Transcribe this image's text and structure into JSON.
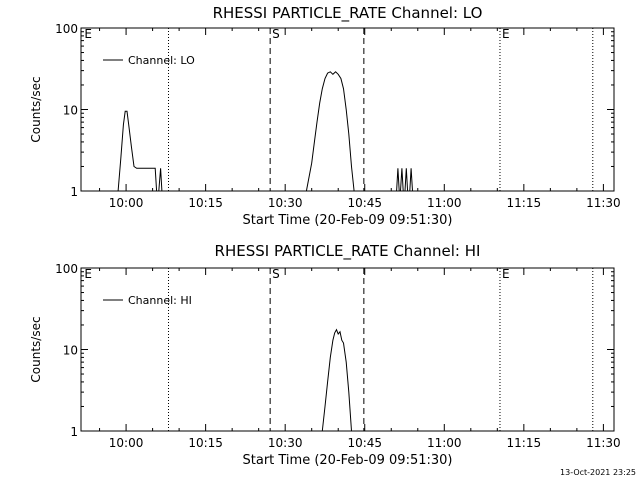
{
  "chart_data": [
    {
      "type": "line",
      "title": "RHESSI PARTICLE_RATE Channel: LO",
      "xlabel": "Start Time (20-Feb-09 09:51:30)",
      "ylabel": "Counts/sec",
      "yscale": "log",
      "ylim": [
        1,
        100
      ],
      "xlim": [
        "09:51:30",
        "11:32:00"
      ],
      "xticks": [
        "10:00",
        "10:15",
        "10:30",
        "10:45",
        "11:00",
        "11:15",
        "11:30"
      ],
      "yticks": [
        "1",
        "10",
        "100"
      ],
      "legend": {
        "label": "Channel: LO",
        "position": "top-left"
      },
      "grid": false,
      "markers": [
        {
          "time": "09:51:45",
          "label": "E",
          "style": "none"
        },
        {
          "time": "10:08:00",
          "label": "",
          "style": "dotted"
        },
        {
          "time": "10:27:10",
          "label": "S",
          "style": "dashed"
        },
        {
          "time": "10:44:50",
          "label": "",
          "style": "dashed"
        },
        {
          "time": "11:10:30",
          "label": "E",
          "style": "dotted"
        },
        {
          "time": "11:28:00",
          "label": "",
          "style": "dotted"
        }
      ],
      "series": [
        {
          "name": "Channel: LO",
          "segments": [
            {
              "x": [
                "09:58:30",
                "09:59:00",
                "09:59:30",
                "09:59:50",
                "10:00:10",
                "10:00:30",
                "10:01:00",
                "10:01:30",
                "10:02:00",
                "10:03:00",
                "10:04:00",
                "10:05:00",
                "10:05:30",
                "10:05:45"
              ],
              "y": [
                1.0,
                2.5,
                6.5,
                9.5,
                9.5,
                6.5,
                3.5,
                2.0,
                1.9,
                1.9,
                1.9,
                1.9,
                1.9,
                1.0
              ]
            },
            {
              "x": [
                "10:06:10",
                "10:06:30",
                "10:06:45"
              ],
              "y": [
                1.0,
                1.9,
                1.0
              ]
            },
            {
              "x": [
                "10:34:00",
                "10:35:00",
                "10:35:30",
                "10:36:00",
                "10:36:30",
                "10:37:00",
                "10:37:30",
                "10:38:00",
                "10:38:30",
                "10:39:00",
                "10:39:30",
                "10:40:00",
                "10:40:30",
                "10:41:00",
                "10:41:30",
                "10:42:00",
                "10:42:30",
                "10:43:00"
              ],
              "y": [
                1.0,
                2.2,
                4.0,
                7.0,
                12.0,
                18.0,
                24.0,
                28.0,
                29.0,
                27.0,
                29.0,
                27.0,
                24.0,
                18.0,
                10.0,
                5.0,
                2.0,
                1.0
              ]
            },
            {
              "x": [
                "10:51:00",
                "10:51:15",
                "10:51:30"
              ],
              "y": [
                1.0,
                1.9,
                1.0
              ]
            },
            {
              "x": [
                "10:51:45",
                "10:52:00",
                "10:52:15"
              ],
              "y": [
                1.0,
                1.9,
                1.0
              ]
            },
            {
              "x": [
                "10:52:35",
                "10:52:50",
                "10:53:05"
              ],
              "y": [
                1.0,
                1.9,
                1.0
              ]
            },
            {
              "x": [
                "10:53:30",
                "10:53:45",
                "10:54:00"
              ],
              "y": [
                1.0,
                1.9,
                1.0
              ]
            }
          ]
        }
      ]
    },
    {
      "type": "line",
      "title": "RHESSI PARTICLE_RATE Channel: HI",
      "xlabel": "Start Time (20-Feb-09 09:51:30)",
      "ylabel": "Counts/sec",
      "yscale": "log",
      "ylim": [
        1,
        100
      ],
      "xlim": [
        "09:51:30",
        "11:32:00"
      ],
      "xticks": [
        "10:00",
        "10:15",
        "10:30",
        "10:45",
        "11:00",
        "11:15",
        "11:30"
      ],
      "yticks": [
        "1",
        "10",
        "100"
      ],
      "legend": {
        "label": "Channel: HI",
        "position": "top-left"
      },
      "grid": false,
      "markers": [
        {
          "time": "09:51:45",
          "label": "E",
          "style": "none"
        },
        {
          "time": "10:08:00",
          "label": "",
          "style": "dotted"
        },
        {
          "time": "10:27:10",
          "label": "S",
          "style": "dashed"
        },
        {
          "time": "10:44:50",
          "label": "",
          "style": "dashed"
        },
        {
          "time": "11:10:30",
          "label": "E",
          "style": "dotted"
        },
        {
          "time": "11:28:00",
          "label": "",
          "style": "dotted"
        }
      ],
      "series": [
        {
          "name": "Channel: HI",
          "segments": [
            {
              "x": [
                "10:37:00",
                "10:37:30",
                "10:38:00",
                "10:38:30",
                "10:39:00",
                "10:39:20",
                "10:39:40",
                "10:40:00",
                "10:40:20",
                "10:40:40",
                "10:41:00",
                "10:41:30",
                "10:42:00",
                "10:42:30"
              ],
              "y": [
                1.0,
                2.0,
                4.0,
                8.0,
                13.0,
                16.0,
                17.5,
                15.5,
                16.5,
                13.0,
                12.0,
                7.0,
                3.0,
                1.0
              ]
            }
          ]
        }
      ]
    }
  ],
  "footer": {
    "timestamp": "13-Oct-2021 23:25"
  }
}
